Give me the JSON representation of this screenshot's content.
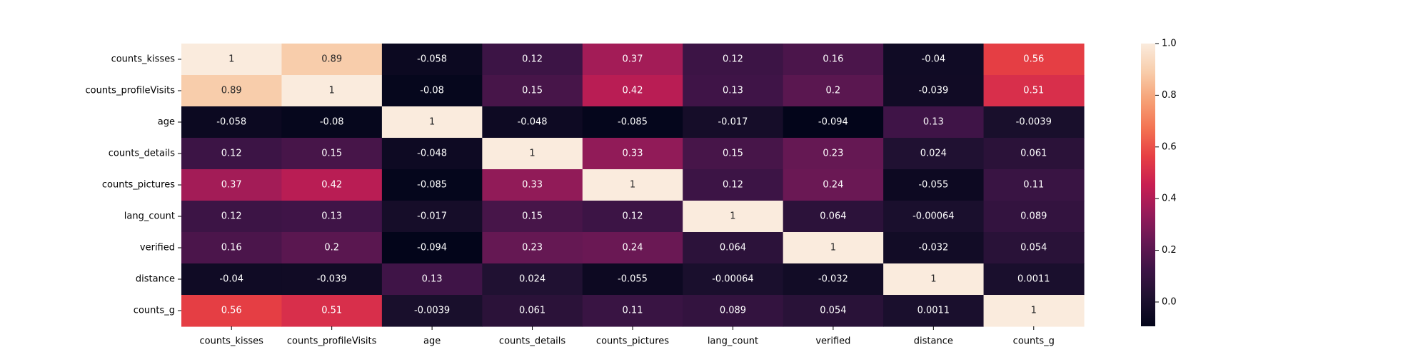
{
  "chart_data": {
    "type": "heatmap",
    "title": "",
    "xlabel": "",
    "ylabel": "",
    "x_categories": [
      "counts_kisses",
      "counts_profileVisits",
      "age",
      "counts_details",
      "counts_pictures",
      "lang_count",
      "verified",
      "distance",
      "counts_g"
    ],
    "y_categories": [
      "counts_kisses",
      "counts_profileVisits",
      "age",
      "counts_details",
      "counts_pictures",
      "lang_count",
      "verified",
      "distance",
      "counts_g"
    ],
    "values": [
      [
        1,
        0.89,
        -0.058,
        0.12,
        0.37,
        0.12,
        0.16,
        -0.04,
        0.56
      ],
      [
        0.89,
        1,
        -0.08,
        0.15,
        0.42,
        0.13,
        0.2,
        -0.039,
        0.51
      ],
      [
        -0.058,
        -0.08,
        1,
        -0.048,
        -0.085,
        -0.017,
        -0.094,
        0.13,
        -0.0039
      ],
      [
        0.12,
        0.15,
        -0.048,
        1,
        0.33,
        0.15,
        0.23,
        0.024,
        0.061
      ],
      [
        0.37,
        0.42,
        -0.085,
        0.33,
        1,
        0.12,
        0.24,
        -0.055,
        0.11
      ],
      [
        0.12,
        0.13,
        -0.017,
        0.15,
        0.12,
        1,
        0.064,
        -0.00064,
        0.089
      ],
      [
        0.16,
        0.2,
        -0.094,
        0.23,
        0.24,
        0.064,
        1,
        -0.032,
        0.054
      ],
      [
        -0.04,
        -0.039,
        0.13,
        0.024,
        -0.055,
        -0.00064,
        -0.032,
        1,
        0.0011
      ],
      [
        0.56,
        0.51,
        -0.0039,
        0.061,
        0.11,
        0.089,
        0.054,
        0.0011,
        1
      ]
    ],
    "labels": [
      [
        "1",
        "0.89",
        "-0.058",
        "0.12",
        "0.37",
        "0.12",
        "0.16",
        "-0.04",
        "0.56"
      ],
      [
        "0.89",
        "1",
        "-0.08",
        "0.15",
        "0.42",
        "0.13",
        "0.2",
        "-0.039",
        "0.51"
      ],
      [
        "-0.058",
        "-0.08",
        "1",
        "-0.048",
        "-0.085",
        "-0.017",
        "-0.094",
        "0.13",
        "-0.0039"
      ],
      [
        "0.12",
        "0.15",
        "-0.048",
        "1",
        "0.33",
        "0.15",
        "0.23",
        "0.024",
        "0.061"
      ],
      [
        "0.37",
        "0.42",
        "-0.085",
        "0.33",
        "1",
        "0.12",
        "0.24",
        "-0.055",
        "0.11"
      ],
      [
        "0.12",
        "0.13",
        "-0.017",
        "0.15",
        "0.12",
        "1",
        "0.064",
        "-0.00064",
        "0.089"
      ],
      [
        "0.16",
        "0.2",
        "-0.094",
        "0.23",
        "0.24",
        "0.064",
        "1",
        "-0.032",
        "0.054"
      ],
      [
        "-0.04",
        "-0.039",
        "0.13",
        "0.024",
        "-0.055",
        "-0.00064",
        "-0.032",
        "1",
        "0.0011"
      ],
      [
        "0.56",
        "0.51",
        "-0.0039",
        "0.061",
        "0.11",
        "0.089",
        "0.054",
        "0.0011",
        "1"
      ]
    ],
    "colormap": "rocket",
    "colorbar": {
      "range": [
        -0.094,
        1
      ],
      "ticks": [
        0.0,
        0.2,
        0.4,
        0.6,
        0.8,
        1.0
      ],
      "tick_labels": [
        "0.0",
        "0.2",
        "0.4",
        "0.6",
        "0.8",
        "1.0"
      ]
    },
    "grid": false,
    "legend": "colorbar-right"
  }
}
